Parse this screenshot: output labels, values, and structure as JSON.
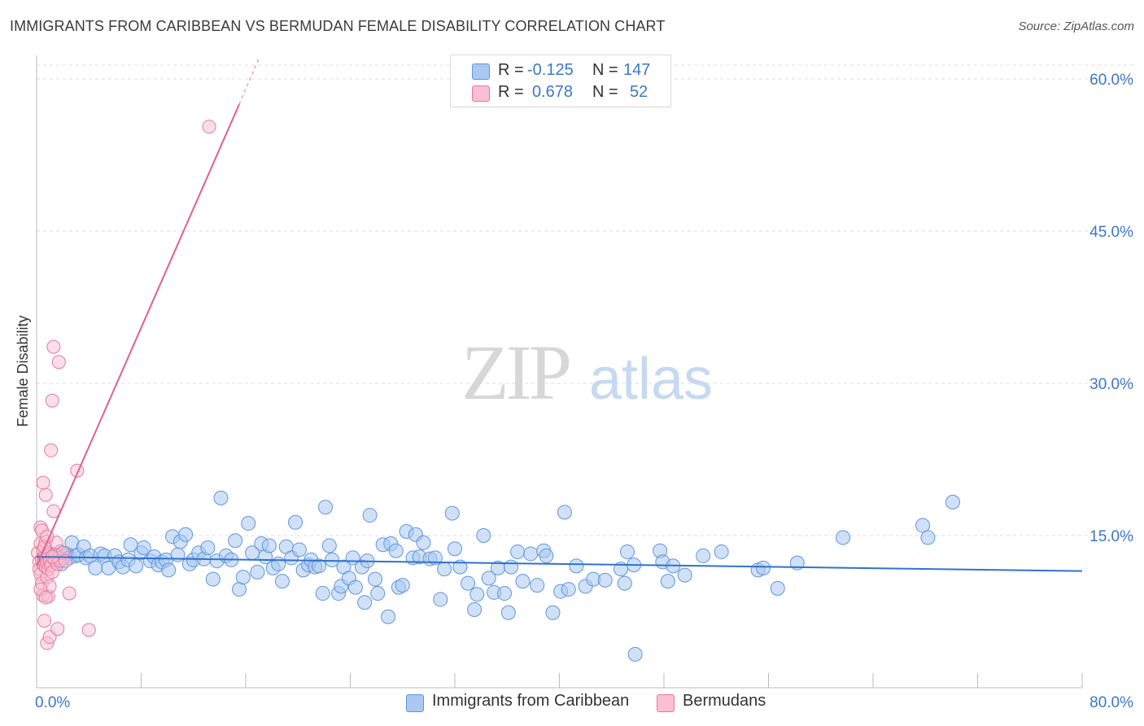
{
  "title": "IMMIGRANTS FROM CARIBBEAN VS BERMUDAN FEMALE DISABILITY CORRELATION CHART",
  "source": "Source: ZipAtlas.com",
  "watermark": {
    "zip": "ZIP",
    "atlas": "atlas"
  },
  "legend": {
    "r_label": "R =",
    "n_label": "N =",
    "series": [
      {
        "name": "Immigrants from Caribbean",
        "r": "-0.125",
        "n": "147",
        "fill": "#aac8f0",
        "stroke": "#5f95dd"
      },
      {
        "name": "Bermudans",
        "r": "0.678",
        "n": "52",
        "fill": "#f8c0d2",
        "stroke": "#e8799c"
      }
    ]
  },
  "colors": {
    "blue_line": "#2f72cf",
    "pink_line": "#e0608c",
    "axis_text": "#3d77c9",
    "grid": "#dcdcdc"
  },
  "chart_data": {
    "type": "scatter",
    "xlabel": "",
    "ylabel": "Female Disability",
    "xlim": [
      0,
      80
    ],
    "ylim": [
      0,
      60
    ],
    "x_ticks": [
      "0.0%",
      "80.0%"
    ],
    "y_ticks": [
      {
        "value": 15,
        "label": "15.0%"
      },
      {
        "value": 30,
        "label": "30.0%"
      },
      {
        "value": 45,
        "label": "45.0%"
      },
      {
        "value": 60,
        "label": "60.0%"
      }
    ],
    "series": [
      {
        "name": "Immigrants from Caribbean",
        "trend": {
          "x": [
            0,
            80
          ],
          "y": [
            12.9,
            11.5
          ]
        },
        "points": [
          [
            0.5,
            12.8
          ],
          [
            0.7,
            12.2
          ],
          [
            0.9,
            13.3
          ],
          [
            1.1,
            12.5
          ],
          [
            1.2,
            12.9
          ],
          [
            1.4,
            13.1
          ],
          [
            1.5,
            12.4
          ],
          [
            1.7,
            12.7
          ],
          [
            1.8,
            13.4
          ],
          [
            1.9,
            12.2
          ],
          [
            2.1,
            12.9
          ],
          [
            2.3,
            13.2
          ],
          [
            2.5,
            12.8
          ],
          [
            2.7,
            14.3
          ],
          [
            3.0,
            13.0
          ],
          [
            3.2,
            13.1
          ],
          [
            3.6,
            13.9
          ],
          [
            3.8,
            12.8
          ],
          [
            4.1,
            13.0
          ],
          [
            4.5,
            11.8
          ],
          [
            4.9,
            13.2
          ],
          [
            5.2,
            13.0
          ],
          [
            5.5,
            11.8
          ],
          [
            6.0,
            13.0
          ],
          [
            6.3,
            12.4
          ],
          [
            6.6,
            11.9
          ],
          [
            7.0,
            12.6
          ],
          [
            7.2,
            14.1
          ],
          [
            7.6,
            12.0
          ],
          [
            8.0,
            13.3
          ],
          [
            8.2,
            13.8
          ],
          [
            8.7,
            12.5
          ],
          [
            9.0,
            12.9
          ],
          [
            9.3,
            12.1
          ],
          [
            9.6,
            12.4
          ],
          [
            9.9,
            12.6
          ],
          [
            10.1,
            11.6
          ],
          [
            10.4,
            14.9
          ],
          [
            10.8,
            13.1
          ],
          [
            11.0,
            14.4
          ],
          [
            11.4,
            15.1
          ],
          [
            11.7,
            12.2
          ],
          [
            12.0,
            12.6
          ],
          [
            12.4,
            13.3
          ],
          [
            12.8,
            12.7
          ],
          [
            13.1,
            13.8
          ],
          [
            13.5,
            10.7
          ],
          [
            13.8,
            12.5
          ],
          [
            14.1,
            18.7
          ],
          [
            14.5,
            13.0
          ],
          [
            14.9,
            12.6
          ],
          [
            15.2,
            14.5
          ],
          [
            15.5,
            9.7
          ],
          [
            15.8,
            10.9
          ],
          [
            16.2,
            16.2
          ],
          [
            16.5,
            13.3
          ],
          [
            16.9,
            11.4
          ],
          [
            17.2,
            14.2
          ],
          [
            17.5,
            12.9
          ],
          [
            17.8,
            14.0
          ],
          [
            18.1,
            11.8
          ],
          [
            18.5,
            12.2
          ],
          [
            18.8,
            10.5
          ],
          [
            19.1,
            13.9
          ],
          [
            19.5,
            12.8
          ],
          [
            19.8,
            16.3
          ],
          [
            20.1,
            13.6
          ],
          [
            20.4,
            11.6
          ],
          [
            20.8,
            12.1
          ],
          [
            21.0,
            12.6
          ],
          [
            21.3,
            11.9
          ],
          [
            21.6,
            12.0
          ],
          [
            21.9,
            9.3
          ],
          [
            22.1,
            17.8
          ],
          [
            22.4,
            14.0
          ],
          [
            22.6,
            12.6
          ],
          [
            23.1,
            9.3
          ],
          [
            23.3,
            10.0
          ],
          [
            23.5,
            11.9
          ],
          [
            23.9,
            10.8
          ],
          [
            24.2,
            12.8
          ],
          [
            24.4,
            9.9
          ],
          [
            24.9,
            11.9
          ],
          [
            25.1,
            8.4
          ],
          [
            25.3,
            12.5
          ],
          [
            25.5,
            17.0
          ],
          [
            25.9,
            10.7
          ],
          [
            26.1,
            9.3
          ],
          [
            26.5,
            14.1
          ],
          [
            26.9,
            7.0
          ],
          [
            27.1,
            14.2
          ],
          [
            27.5,
            13.5
          ],
          [
            27.7,
            9.9
          ],
          [
            28.0,
            10.1
          ],
          [
            28.3,
            15.4
          ],
          [
            28.8,
            12.8
          ],
          [
            29.0,
            15.1
          ],
          [
            29.3,
            12.9
          ],
          [
            29.6,
            14.3
          ],
          [
            30.1,
            12.7
          ],
          [
            30.5,
            12.8
          ],
          [
            30.9,
            8.7
          ],
          [
            31.2,
            11.7
          ],
          [
            31.8,
            17.2
          ],
          [
            32.0,
            13.7
          ],
          [
            32.4,
            11.9
          ],
          [
            33.0,
            10.3
          ],
          [
            33.5,
            7.7
          ],
          [
            33.7,
            9.2
          ],
          [
            34.2,
            15.0
          ],
          [
            34.6,
            10.8
          ],
          [
            35.0,
            9.4
          ],
          [
            35.3,
            11.8
          ],
          [
            35.8,
            9.3
          ],
          [
            36.1,
            7.4
          ],
          [
            36.3,
            11.9
          ],
          [
            36.8,
            13.4
          ],
          [
            37.2,
            10.5
          ],
          [
            37.8,
            13.2
          ],
          [
            38.3,
            10.1
          ],
          [
            38.8,
            13.5
          ],
          [
            39.0,
            13.0
          ],
          [
            39.5,
            7.4
          ],
          [
            40.1,
            9.5
          ],
          [
            40.4,
            17.3
          ],
          [
            40.7,
            9.7
          ],
          [
            41.3,
            12.0
          ],
          [
            42.0,
            10.0
          ],
          [
            42.6,
            10.7
          ],
          [
            43.5,
            10.6
          ],
          [
            44.7,
            11.7
          ],
          [
            45.0,
            10.3
          ],
          [
            45.2,
            13.4
          ],
          [
            45.7,
            12.1
          ],
          [
            45.8,
            3.3
          ],
          [
            47.7,
            13.5
          ],
          [
            47.9,
            12.4
          ],
          [
            48.3,
            10.5
          ],
          [
            48.7,
            12.0
          ],
          [
            49.6,
            11.1
          ],
          [
            51.0,
            13.0
          ],
          [
            52.4,
            13.4
          ],
          [
            55.2,
            11.6
          ],
          [
            55.6,
            11.8
          ],
          [
            56.7,
            9.8
          ],
          [
            58.2,
            12.3
          ],
          [
            61.7,
            14.8
          ],
          [
            67.8,
            16.0
          ],
          [
            68.2,
            14.8
          ],
          [
            70.1,
            18.3
          ]
        ]
      },
      {
        "name": "Bermudans",
        "trend": {
          "x": [
            0,
            15.5
          ],
          "y": [
            12.0,
            57.5
          ]
        },
        "trend_dashed": {
          "x": [
            15.5,
            17.0
          ],
          "y": [
            57.5,
            62.0
          ]
        },
        "points": [
          [
            0.1,
            13.3
          ],
          [
            0.2,
            12.4
          ],
          [
            0.2,
            11.7
          ],
          [
            0.3,
            15.8
          ],
          [
            0.3,
            14.2
          ],
          [
            0.3,
            11.2
          ],
          [
            0.4,
            12.6
          ],
          [
            0.4,
            10.3
          ],
          [
            0.5,
            13.6
          ],
          [
            0.5,
            20.2
          ],
          [
            0.5,
            9.1
          ],
          [
            0.6,
            12.0
          ],
          [
            0.6,
            6.6
          ],
          [
            0.6,
            12.8
          ],
          [
            0.7,
            19.0
          ],
          [
            0.7,
            11.9
          ],
          [
            0.7,
            14.4
          ],
          [
            0.8,
            12.3
          ],
          [
            0.8,
            10.9
          ],
          [
            0.8,
            4.4
          ],
          [
            0.9,
            11.7
          ],
          [
            0.9,
            13.0
          ],
          [
            0.9,
            9.0
          ],
          [
            1.0,
            12.5
          ],
          [
            1.0,
            5.0
          ],
          [
            1.1,
            12.1
          ],
          [
            1.1,
            23.4
          ],
          [
            1.2,
            28.3
          ],
          [
            1.2,
            11.4
          ],
          [
            1.3,
            33.6
          ],
          [
            1.3,
            17.4
          ],
          [
            1.4,
            12.6
          ],
          [
            1.4,
            13.1
          ],
          [
            1.5,
            14.3
          ],
          [
            1.6,
            12.2
          ],
          [
            1.6,
            5.8
          ],
          [
            1.7,
            12.8
          ],
          [
            1.7,
            32.1
          ],
          [
            1.8,
            12.5
          ],
          [
            2.0,
            13.3
          ],
          [
            2.2,
            12.5
          ],
          [
            2.5,
            9.3
          ],
          [
            3.1,
            21.4
          ],
          [
            4.0,
            5.7
          ],
          [
            13.2,
            55.3
          ],
          [
            0.4,
            15.5
          ],
          [
            0.6,
            13.9
          ],
          [
            0.8,
            14.9
          ],
          [
            1.0,
            10.0
          ],
          [
            1.2,
            12.9
          ],
          [
            0.3,
            9.7
          ],
          [
            0.7,
            8.9
          ]
        ]
      }
    ]
  }
}
